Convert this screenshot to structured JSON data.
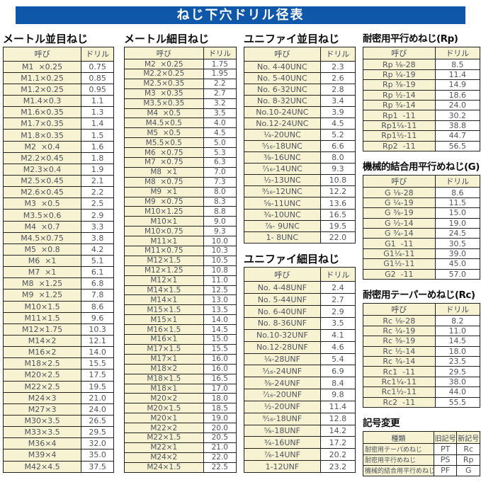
{
  "page_title": "ねじ下穴ドリル径表",
  "colors": {
    "banner_blue": "#0f57a8",
    "cell_yellow": "#f6f2d2",
    "border_dark": "#1f1f1f"
  },
  "col_headers": {
    "name": "呼び",
    "drill": "ドリル"
  },
  "tables": {
    "metric_coarse": {
      "title": "メートル並目ねじ",
      "rows": [
        [
          "M1  ×0.25",
          "0.75"
        ],
        [
          "M1.1×0.25",
          "0.85"
        ],
        [
          "M1.2×0.25",
          "0.95"
        ],
        [
          "M1.4×0.3",
          "1.1"
        ],
        [
          "M1.6×0.35",
          "1.3"
        ],
        [
          "M1.7×0.35",
          "1.4"
        ],
        [
          "M1.8×0.35",
          "1.5"
        ],
        [
          "M2  ×0.4",
          "1.6"
        ],
        [
          "M2.2×0.45",
          "1.8"
        ],
        [
          "M2.3×0.4",
          "1.9"
        ],
        [
          "M2.5×0.45",
          "2.1"
        ],
        [
          "M2.6×0.45",
          "2.2"
        ],
        [
          "M3  ×0.5",
          "2.5"
        ],
        [
          "M3.5×0.6",
          "2.9"
        ],
        [
          "M4  ×0.7",
          "3.3"
        ],
        [
          "M4.5×0.75",
          "3.8"
        ],
        [
          "M5  ×0.8",
          "4.2"
        ],
        [
          "M6  ×1",
          "5.1"
        ],
        [
          "M7  ×1",
          "6.1"
        ],
        [
          "M8  ×1.25",
          "6.8"
        ],
        [
          "M9  ×1.25",
          "7.8"
        ],
        [
          "M10×1.5",
          "8.6"
        ],
        [
          "M11×1.5",
          "9.6"
        ],
        [
          "M12×1.75",
          "10.3"
        ],
        [
          "M14×2",
          "12.1"
        ],
        [
          "M16×2",
          "14.0"
        ],
        [
          "M18×2.5",
          "15.5"
        ],
        [
          "M20×2.5",
          "17.5"
        ],
        [
          "M22×2.5",
          "19.5"
        ],
        [
          "M24×3",
          "21.0"
        ],
        [
          "M27×3",
          "24.0"
        ],
        [
          "M30×3.5",
          "26.5"
        ],
        [
          "M33×3.5",
          "29.5"
        ],
        [
          "M36×4",
          "32.0"
        ],
        [
          "M39×4",
          "35.0"
        ],
        [
          "M42×4.5",
          "37.5"
        ]
      ]
    },
    "metric_fine": {
      "title": "メートル細目ねじ",
      "rows": [
        [
          "M2  ×0.25",
          "1.75"
        ],
        [
          "M2.2×0.25",
          "1.95"
        ],
        [
          "M2.5×0.35",
          "2.2"
        ],
        [
          "M3  ×0.35",
          "2.7"
        ],
        [
          "M3.5×0.35",
          "3.2"
        ],
        [
          "M4  ×0.5",
          "3.5"
        ],
        [
          "M4.5×0.5",
          "4.0"
        ],
        [
          "M5  ×0.5",
          "4.5"
        ],
        [
          "M5.5×0.5",
          "5.0"
        ],
        [
          "M6  ×0.75",
          "5.3"
        ],
        [
          "M7  ×0.75",
          "6.3"
        ],
        [
          "M8  ×1",
          "7.0"
        ],
        [
          "M8  ×0.75",
          "7.3"
        ],
        [
          "M9  ×1",
          "8.0"
        ],
        [
          "M9  ×0.75",
          "8.3"
        ],
        [
          "M10×1.25",
          "8.8"
        ],
        [
          "M10×1",
          "9.0"
        ],
        [
          "M10×0.75",
          "9.3"
        ],
        [
          "M11×1",
          "10.0"
        ],
        [
          "M11×0.75",
          "10.3"
        ],
        [
          "M12×1.5",
          "10.5"
        ],
        [
          "M12×1.25",
          "10.8"
        ],
        [
          "M12×1",
          "11.0"
        ],
        [
          "M14×1.5",
          "12.5"
        ],
        [
          "M14×1",
          "13.0"
        ],
        [
          "M15×1.5",
          "13.5"
        ],
        [
          "M15×1",
          "14.0"
        ],
        [
          "M16×1.5",
          "14.5"
        ],
        [
          "M16×1",
          "15.0"
        ],
        [
          "M17×1.5",
          "15.5"
        ],
        [
          "M17×1",
          "16.0"
        ],
        [
          "M18×2",
          "16.0"
        ],
        [
          "M18×1.5",
          "16.5"
        ],
        [
          "M18×1",
          "17.0"
        ],
        [
          "M20×2",
          "18.0"
        ],
        [
          "M20×1.5",
          "18.5"
        ],
        [
          "M20×1",
          "19.0"
        ],
        [
          "M22×2",
          "20.0"
        ],
        [
          "M22×1.5",
          "20.5"
        ],
        [
          "M22×1",
          "21.0"
        ],
        [
          "M24×2",
          "22.0"
        ],
        [
          "M24×1.5",
          "22.5"
        ]
      ]
    },
    "unified_coarse": {
      "title": "ユニファイ並目ねじ",
      "rows": [
        [
          "No. 4-40UNC",
          "2.3"
        ],
        [
          "No. 5-40UNC",
          "2.6"
        ],
        [
          "No. 6-32UNC",
          "2.8"
        ],
        [
          "No. 8-32UNC",
          "3.4"
        ],
        [
          "No.10-24UNC",
          "3.9"
        ],
        [
          "No.12-24UNC",
          "4.5"
        ],
        [
          "¹⁄₄-20UNC",
          "5.2"
        ],
        [
          "⁵⁄₁₆-18UNC",
          "6.6"
        ],
        [
          "³⁄₈-16UNC",
          "8.0"
        ],
        [
          "⁷⁄₁₆-14UNC",
          "9.3"
        ],
        [
          "¹⁄₂-13UNC",
          "10.8"
        ],
        [
          "⁹⁄₁₆-12UNC",
          "12.2"
        ],
        [
          "⁵⁄₈-11UNC",
          "13.6"
        ],
        [
          "³⁄₄-10UNC",
          "16.5"
        ],
        [
          "⁷⁄₈- 9UNC",
          "19.5"
        ],
        [
          "1- 8UNC",
          "22.0"
        ]
      ]
    },
    "unified_fine": {
      "title": "ユニファイ細目ねじ",
      "rows": [
        [
          "No. 4-48UNF",
          "2.4"
        ],
        [
          "No. 5-44UNF",
          "2.7"
        ],
        [
          "No. 6-40UNF",
          "2.9"
        ],
        [
          "No. 8-36UNF",
          "3.5"
        ],
        [
          "No.10-32UNF",
          "4.1"
        ],
        [
          "No.12-28UNF",
          "4.6"
        ],
        [
          "¹⁄₄-28UNF",
          "5.4"
        ],
        [
          "⁵⁄₁₆-24UNF",
          "6.9"
        ],
        [
          "³⁄₈-24UNF",
          "8.4"
        ],
        [
          "⁷⁄₁₆-20UNF",
          "9.8"
        ],
        [
          "¹⁄₂-20UNF",
          "11.4"
        ],
        [
          "⁹⁄₁₆-18UNF",
          "12.8"
        ],
        [
          "⁵⁄₈-18UNF",
          "14.2"
        ],
        [
          "³⁄₄-16UNF",
          "17.2"
        ],
        [
          "⁷⁄₈-14UNF",
          "20.2"
        ],
        [
          "1-12UNF",
          "23.2"
        ]
      ]
    },
    "rp": {
      "title": "耐密用平行めねじ(Rp)",
      "rows": [
        [
          "Rp ¹⁄₈-28",
          "8.5"
        ],
        [
          "Rp ¹⁄₄-19",
          "11.4"
        ],
        [
          "Rp ³⁄₈-19",
          "14.9"
        ],
        [
          "Rp ¹⁄₂-14",
          "18.6"
        ],
        [
          "Rp ³⁄₄-14",
          "24.0"
        ],
        [
          "Rp1  -11",
          "30.2"
        ],
        [
          "Rp1¹⁄₄-11",
          "38.8"
        ],
        [
          "Rp1¹⁄₂-11",
          "44.7"
        ],
        [
          "Rp2  -11",
          "56.5"
        ]
      ]
    },
    "g": {
      "title": "機械的結合用平行めねじ(G)",
      "rows": [
        [
          "G ¹⁄₈-28",
          "8.6"
        ],
        [
          "G ¹⁄₄-19",
          "11.5"
        ],
        [
          "G ³⁄₈-19",
          "15.0"
        ],
        [
          "G ¹⁄₂-14",
          "19.0"
        ],
        [
          "G ³⁄₄-14",
          "24.5"
        ],
        [
          "G1  -11",
          "30.5"
        ],
        [
          "G1¹⁄₄-11",
          "39.0"
        ],
        [
          "G1¹⁄₂-11",
          "45.0"
        ],
        [
          "G2  -11",
          "57.0"
        ]
      ]
    },
    "rc": {
      "title": "耐密用テーパーめねじ(Rc)",
      "rows": [
        [
          "Rc ¹⁄₈-28",
          "8.2"
        ],
        [
          "Rc ¹⁄₄-19",
          "11.0"
        ],
        [
          "Rc ³⁄₈-19",
          "14.5"
        ],
        [
          "Rc ¹⁄₂-14",
          "18.0"
        ],
        [
          "Rc ³⁄₄-14",
          "23.5"
        ],
        [
          "Rc1  -11",
          "29.5"
        ],
        [
          "Rc1¹⁄₄-11",
          "38.0"
        ],
        [
          "Rc1¹⁄₂-11",
          "44.0"
        ],
        [
          "Rc2  -11",
          "55.5"
        ]
      ]
    },
    "symbol_change": {
      "title": "記号変更",
      "headers": [
        "種類",
        "旧記号",
        "新記号"
      ],
      "rows": [
        [
          "耐密用テーパめねじ",
          "PT",
          "Rc"
        ],
        [
          "耐密用平行めねじ",
          "PS",
          "Rp"
        ],
        [
          "機械的結合用平行めねじ",
          "PF",
          "G"
        ]
      ]
    }
  }
}
